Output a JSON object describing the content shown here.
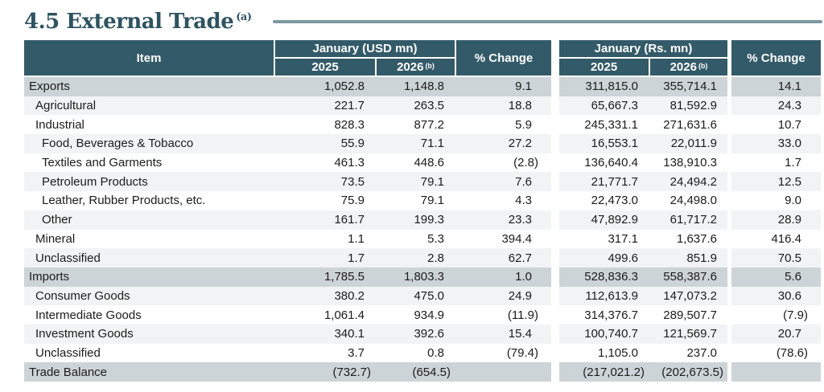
{
  "page": {
    "title": "4.5 External Trade",
    "title_note": "(a)"
  },
  "colors": {
    "header_teal": "#335a68",
    "band_gray": "#cdd4d8",
    "light_row": "#f1f3f4",
    "accent_rule": "#7e98a3",
    "title_color": "#2e5361"
  },
  "table": {
    "header": {
      "item": "Item",
      "usd_group": "January (USD mn)",
      "rs_group": "January (Rs. mn)",
      "col_2025": "2025",
      "col_2026": "2026",
      "note_b": "(b)",
      "pct_change": "% Change"
    },
    "rows": [
      {
        "item": "Exports",
        "usd_2025": "1,052.8",
        "usd_2026": "1,148.8",
        "usd_change": "9.1",
        "rs_2025": "311,815.0",
        "rs_2026": "355,714.1",
        "rs_change": "14.1"
      },
      {
        "item": "Agricultural",
        "usd_2025": "221.7",
        "usd_2026": "263.5",
        "usd_change": "18.8",
        "rs_2025": "65,667.3",
        "rs_2026": "81,592.9",
        "rs_change": "24.3"
      },
      {
        "item": "Industrial",
        "usd_2025": "828.3",
        "usd_2026": "877.2",
        "usd_change": "5.9",
        "rs_2025": "245,331.1",
        "rs_2026": "271,631.6",
        "rs_change": "10.7"
      },
      {
        "item": "Food, Beverages & Tobacco",
        "usd_2025": "55.9",
        "usd_2026": "71.1",
        "usd_change": "27.2",
        "rs_2025": "16,553.1",
        "rs_2026": "22,011.9",
        "rs_change": "33.0"
      },
      {
        "item": "Textiles and Garments",
        "usd_2025": "461.3",
        "usd_2026": "448.6",
        "usd_change": "(2.8)",
        "rs_2025": "136,640.4",
        "rs_2026": "138,910.3",
        "rs_change": "1.7"
      },
      {
        "item": "Petroleum Products",
        "usd_2025": "73.5",
        "usd_2026": "79.1",
        "usd_change": "7.6",
        "rs_2025": "21,771.7",
        "rs_2026": "24,494.2",
        "rs_change": "12.5"
      },
      {
        "item": "Leather, Rubber Products, etc.",
        "usd_2025": "75.9",
        "usd_2026": "79.1",
        "usd_change": "4.3",
        "rs_2025": "22,473.0",
        "rs_2026": "24,498.0",
        "rs_change": "9.0"
      },
      {
        "item": "Other",
        "usd_2025": "161.7",
        "usd_2026": "199.3",
        "usd_change": "23.3",
        "rs_2025": "47,892.9",
        "rs_2026": "61,717.2",
        "rs_change": "28.9"
      },
      {
        "item": "Mineral",
        "usd_2025": "1.1",
        "usd_2026": "5.3",
        "usd_change": "394.4",
        "rs_2025": "317.1",
        "rs_2026": "1,637.6",
        "rs_change": "416.4"
      },
      {
        "item": "Unclassified",
        "usd_2025": "1.7",
        "usd_2026": "2.8",
        "usd_change": "62.7",
        "rs_2025": "499.6",
        "rs_2026": "851.9",
        "rs_change": "70.5"
      },
      {
        "item": "Imports",
        "usd_2025": "1,785.5",
        "usd_2026": "1,803.3",
        "usd_change": "1.0",
        "rs_2025": "528,836.3",
        "rs_2026": "558,387.6",
        "rs_change": "5.6"
      },
      {
        "item": "Consumer Goods",
        "usd_2025": "380.2",
        "usd_2026": "475.0",
        "usd_change": "24.9",
        "rs_2025": "112,613.9",
        "rs_2026": "147,073.2",
        "rs_change": "30.6"
      },
      {
        "item": "Intermediate Goods",
        "usd_2025": "1,061.4",
        "usd_2026": "934.9",
        "usd_change": "(11.9)",
        "rs_2025": "314,376.7",
        "rs_2026": "289,507.7",
        "rs_change": "(7.9)"
      },
      {
        "item": "Investment Goods",
        "usd_2025": "340.1",
        "usd_2026": "392.6",
        "usd_change": "15.4",
        "rs_2025": "100,740.7",
        "rs_2026": "121,569.7",
        "rs_change": "20.7"
      },
      {
        "item": "Unclassified",
        "usd_2025": "3.7",
        "usd_2026": "0.8",
        "usd_change": "(79.4)",
        "rs_2025": "1,105.0",
        "rs_2026": "237.0",
        "rs_change": "(78.6)"
      },
      {
        "item": "Trade Balance",
        "usd_2025": "(732.7)",
        "usd_2026": "(654.5)",
        "usd_change": "",
        "rs_2025": "(217,021.2)",
        "rs_2026": "(202,673.5)",
        "rs_change": ""
      }
    ]
  }
}
